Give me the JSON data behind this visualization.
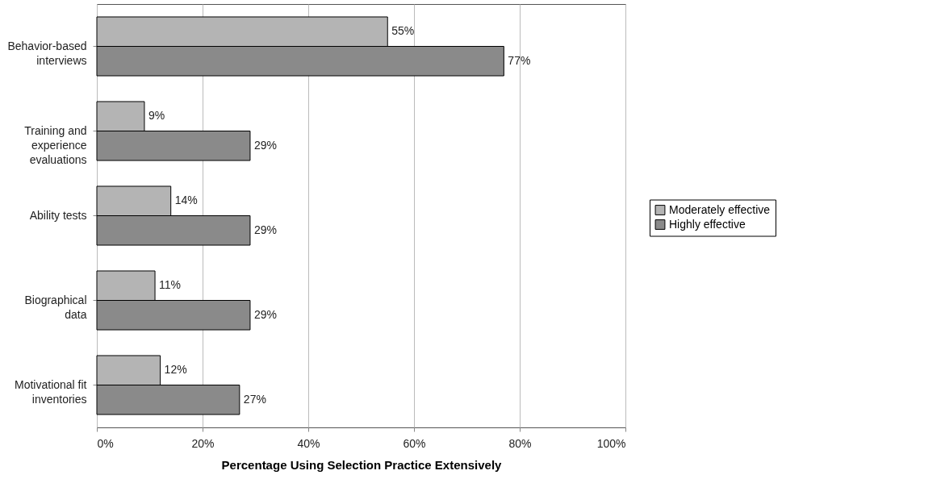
{
  "chart_data": {
    "type": "bar",
    "orientation": "horizontal",
    "xlabel": "Percentage Using Selection Practice Extensively",
    "categories": [
      "Behavior-based interviews",
      "Training and experience evaluations",
      "Ability tests",
      "Biographical data",
      "Motivational fit inventories"
    ],
    "series": [
      {
        "name": "Moderately effective",
        "color": "#b4b4b4",
        "values": [
          55,
          9,
          14,
          11,
          12
        ],
        "value_labels": [
          "55%",
          "9%",
          "14%",
          "11%",
          "12%"
        ]
      },
      {
        "name": "Highly effective",
        "color": "#8a8a8a",
        "values": [
          77,
          29,
          29,
          29,
          27
        ],
        "value_labels": [
          "77%",
          "29%",
          "29%",
          "29%",
          "27%"
        ]
      }
    ],
    "xlim": [
      0,
      100
    ],
    "xticks": [
      {
        "value": 0,
        "label": "0%"
      },
      {
        "value": 20,
        "label": "20%"
      },
      {
        "value": 40,
        "label": "40%"
      },
      {
        "value": 60,
        "label": "60%"
      },
      {
        "value": 80,
        "label": "80%"
      },
      {
        "value": 100,
        "label": "100%"
      }
    ],
    "grid": "x",
    "legend": "right"
  }
}
